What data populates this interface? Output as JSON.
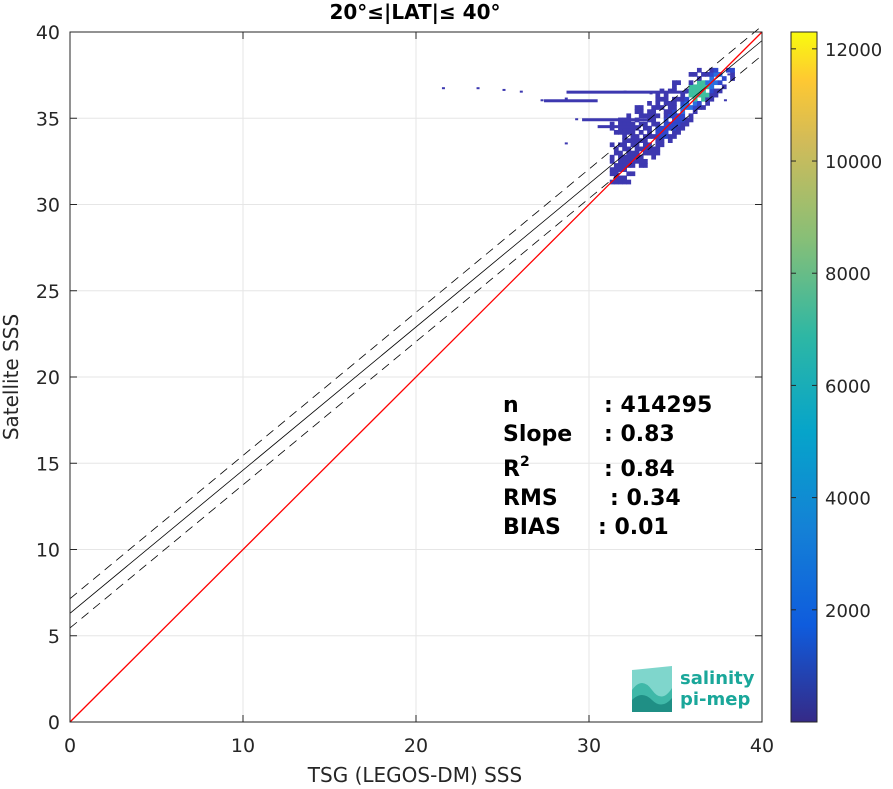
{
  "chart_data": {
    "type": "heatmap",
    "title": "20°≤|LAT|≤ 40°",
    "xlabel": "TSG (LEGOS-DM) SSS",
    "ylabel": "Satellite SSS",
    "xlim": [
      0,
      40
    ],
    "ylim": [
      0,
      40
    ],
    "xticks": [
      "0",
      "10",
      "20",
      "30",
      "40"
    ],
    "yticks": [
      "0",
      "5",
      "10",
      "15",
      "20",
      "25",
      "30",
      "35",
      "40"
    ],
    "grid": true,
    "colorbar": {
      "range": [
        0,
        12300
      ],
      "ticks": [
        "2000",
        "4000",
        "6000",
        "8000",
        "10000",
        "12000"
      ],
      "colormap": "parula"
    },
    "identity_line": {
      "x": [
        0,
        40
      ],
      "y": [
        0,
        40
      ],
      "color": "#ff0000"
    },
    "regression_line": {
      "intercept": 6.3,
      "slope": 0.83,
      "color": "#000000"
    },
    "confidence_band": {
      "offset": 0.85,
      "style": "dashed"
    },
    "density_region": {
      "x_range": [
        31.2,
        38.3
      ],
      "y_range": [
        31.2,
        37.8
      ],
      "peak": [
        36.2,
        36.5
      ]
    },
    "stats": [
      {
        "label": "n",
        "value": ": 414295"
      },
      {
        "label": "Slope",
        "value": ": 0.83"
      },
      {
        "label": "R",
        "sup": "2",
        "value": ": 0.84"
      },
      {
        "label": "RMS",
        "value": ": 0.34"
      },
      {
        "label": "BIAS",
        "value": ": 0.01"
      }
    ]
  },
  "logo": {
    "line1": "salinity",
    "line2": "pi-mep"
  }
}
